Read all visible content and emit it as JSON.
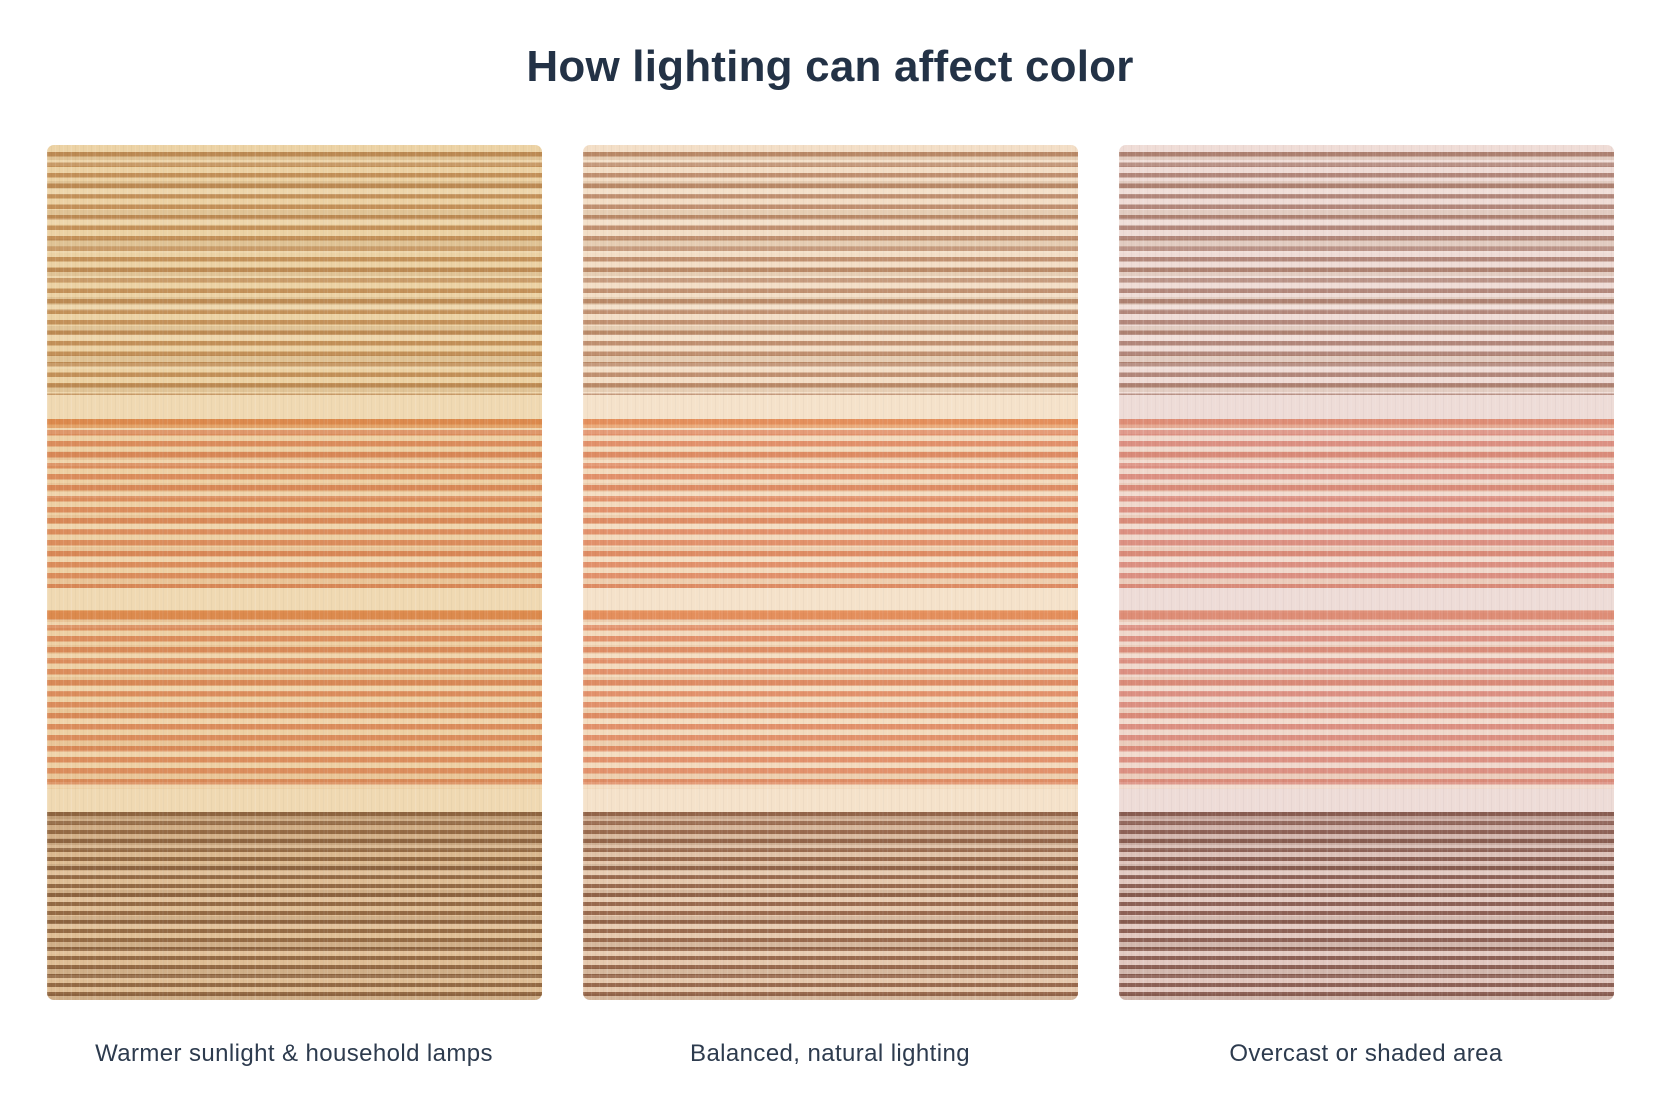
{
  "title": "How lighting can affect color",
  "colors": {
    "page_background": "#ffffff",
    "title_text": "#233246",
    "caption_text": "#2d3b4e"
  },
  "rugs": [
    {
      "id": "warm",
      "caption": "Warmer sunlight & household lamps",
      "palette": {
        "top_base": "#ecd2a4",
        "top_stripe": "#c39159",
        "separator": "#f0d9b2",
        "orange_base": "#eed0a4",
        "orange_stripe": "#db8d5c",
        "orange_accent": "#e08a45",
        "bottom_base": "#dfbe95",
        "dark_stripe": "#946a44"
      }
    },
    {
      "id": "balanced",
      "caption": "Balanced, natural lighting",
      "palette": {
        "top_base": "#f3dec6",
        "top_stripe": "#c09070",
        "separator": "#f5e2ca",
        "orange_base": "#f3dabd",
        "orange_stripe": "#e2916b",
        "orange_accent": "#ea9156",
        "bottom_base": "#e6c9ae",
        "dark_stripe": "#996a4e"
      }
    },
    {
      "id": "overcast",
      "caption": "Overcast or shaded area",
      "palette": {
        "top_base": "#efdcd6",
        "top_stripe": "#b2877b",
        "separator": "#eedcd7",
        "orange_base": "#f0d8cc",
        "orange_stripe": "#dc9082",
        "orange_accent": "#e18f74",
        "bottom_base": "#e2c8c0",
        "dark_stripe": "#8d6156"
      }
    }
  ]
}
